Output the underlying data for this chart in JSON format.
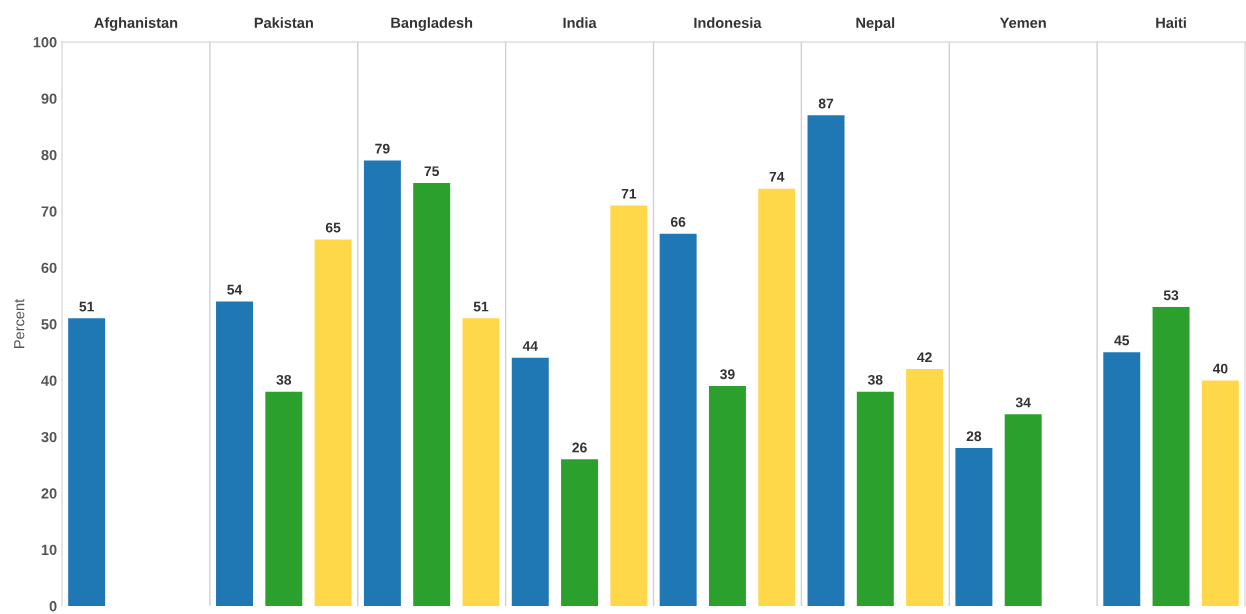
{
  "chart_data": {
    "type": "bar",
    "ylabel": "Percent",
    "categories": [
      "Afghanistan",
      "Pakistan",
      "Bangladesh",
      "India",
      "Indonesia",
      "Nepal",
      "Yemen",
      "Haiti"
    ],
    "ylim": [
      0,
      100
    ],
    "yticks": [
      0,
      10,
      20,
      30,
      40,
      50,
      60,
      70,
      80,
      90,
      100
    ],
    "grid": "x",
    "data_labels": true,
    "series": [
      {
        "color": "#1f77b4",
        "values": [
          51,
          54,
          79,
          44,
          66,
          87,
          28,
          45
        ]
      },
      {
        "color": "#2ca02c",
        "values": [
          null,
          38,
          75,
          26,
          39,
          38,
          34,
          53
        ]
      },
      {
        "color": "#ffd84a",
        "values": [
          null,
          65,
          51,
          71,
          74,
          42,
          null,
          40
        ]
      }
    ]
  }
}
